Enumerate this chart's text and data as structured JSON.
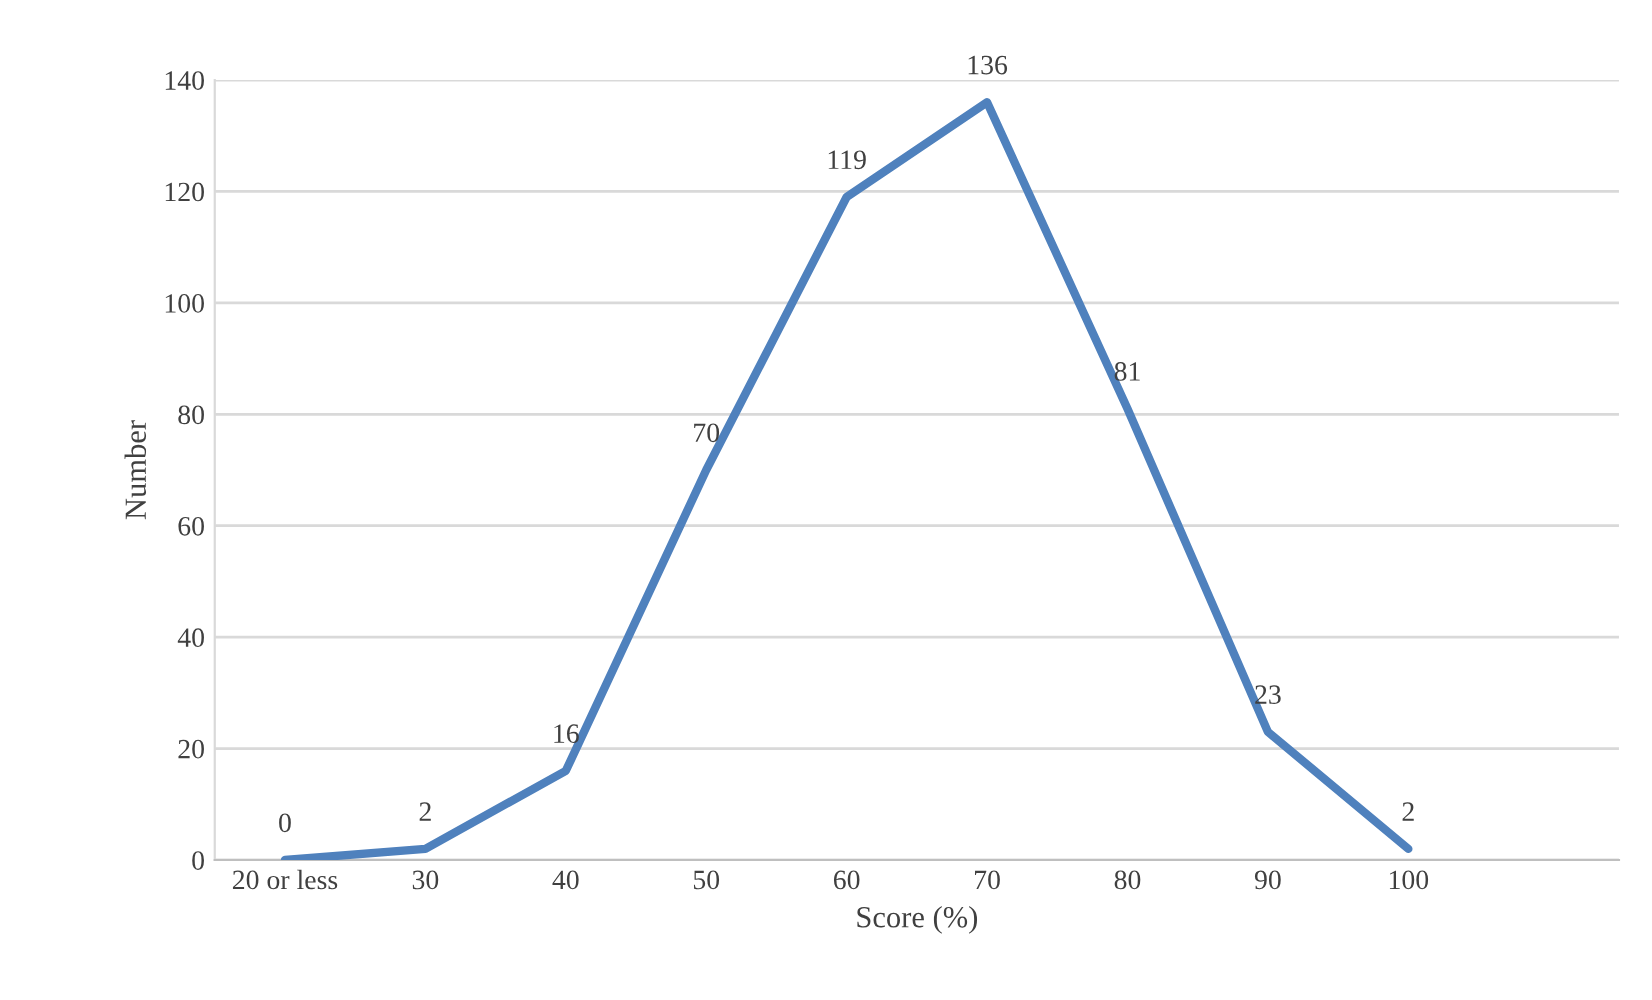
{
  "chart_data": {
    "type": "line",
    "xlabel": "Score (%)",
    "ylabel": "Number",
    "categories": [
      "20 or less",
      "30",
      "40",
      "50",
      "60",
      "70",
      "80",
      "90",
      "100",
      null
    ],
    "values": [
      0,
      2,
      16,
      70,
      119,
      136,
      81,
      23,
      2,
      null
    ],
    "color": "#4f81bd",
    "ylim": [
      0,
      140
    ],
    "yticks": [
      0,
      20,
      40,
      60,
      80,
      100,
      120,
      140
    ],
    "grid": "y",
    "data_labels": true,
    "marker": "none"
  }
}
